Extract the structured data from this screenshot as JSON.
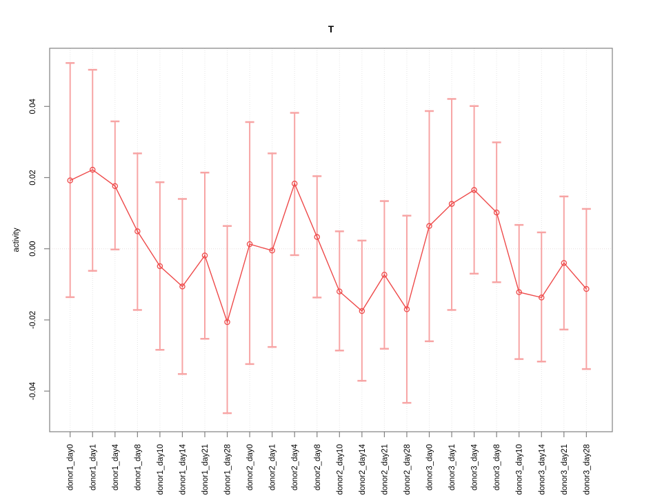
{
  "chart_data": {
    "type": "line",
    "subtype": "points-with-error-bars",
    "marker": "open-circle",
    "title": "T",
    "xlabel": "",
    "ylabel": "activity",
    "legend": "none",
    "grid": "vertical-dotted-per-category-plus-dotted-zero-line",
    "ylim": [
      -0.05,
      0.054
    ],
    "yticks": [
      -0.04,
      -0.02,
      0.0,
      0.02,
      0.04
    ],
    "ytick_labels": [
      "-0.04",
      "-0.02",
      "0.00",
      "0.02",
      "0.04"
    ],
    "categories": [
      "donor1_day0",
      "donor1_day1",
      "donor1_day4",
      "donor1_day8",
      "donor1_day10",
      "donor1_day14",
      "donor1_day21",
      "donor1_day28",
      "donor2_day0",
      "donor2_day1",
      "donor2_day4",
      "donor2_day8",
      "donor2_day10",
      "donor2_day14",
      "donor2_day21",
      "donor2_day28",
      "donor3_day0",
      "donor3_day1",
      "donor3_day4",
      "donor3_day8",
      "donor3_day10",
      "donor3_day14",
      "donor3_day21",
      "donor3_day28"
    ],
    "series": [
      {
        "name": "activity",
        "values": [
          0.0192,
          0.0222,
          0.0176,
          0.0049,
          -0.0049,
          -0.0106,
          -0.0019,
          -0.0206,
          0.0013,
          -0.0005,
          0.0183,
          0.0033,
          -0.012,
          -0.0175,
          -0.0073,
          -0.017,
          0.0064,
          0.0126,
          0.0165,
          0.0102,
          -0.0122,
          -0.0137,
          -0.004,
          -0.0113
        ]
      }
    ],
    "error_upper": [
      0.0522,
      0.0503,
      0.0358,
      0.0268,
      0.0187,
      0.014,
      0.0214,
      0.0064,
      0.0356,
      0.0268,
      0.0382,
      0.0204,
      0.0049,
      0.0023,
      0.0134,
      0.0093,
      0.0387,
      0.0421,
      0.0401,
      0.0299,
      0.0067,
      0.0046,
      0.0147,
      0.0112
    ],
    "error_lower": [
      -0.0136,
      -0.0062,
      -0.0002,
      -0.0172,
      -0.0284,
      -0.0352,
      -0.0253,
      -0.0462,
      -0.0324,
      -0.0276,
      -0.0018,
      -0.0137,
      -0.0286,
      -0.0371,
      -0.0281,
      -0.0433,
      -0.026,
      -0.0172,
      -0.007,
      -0.0094,
      -0.031,
      -0.0317,
      -0.0227,
      -0.0338
    ],
    "colors": {
      "line": "#ee4a4a",
      "errorbar": "#f7a4a4",
      "grid": "#e4e4e4",
      "zero_line": "#e7dede",
      "axis": "#808080",
      "text": "#000000"
    }
  }
}
